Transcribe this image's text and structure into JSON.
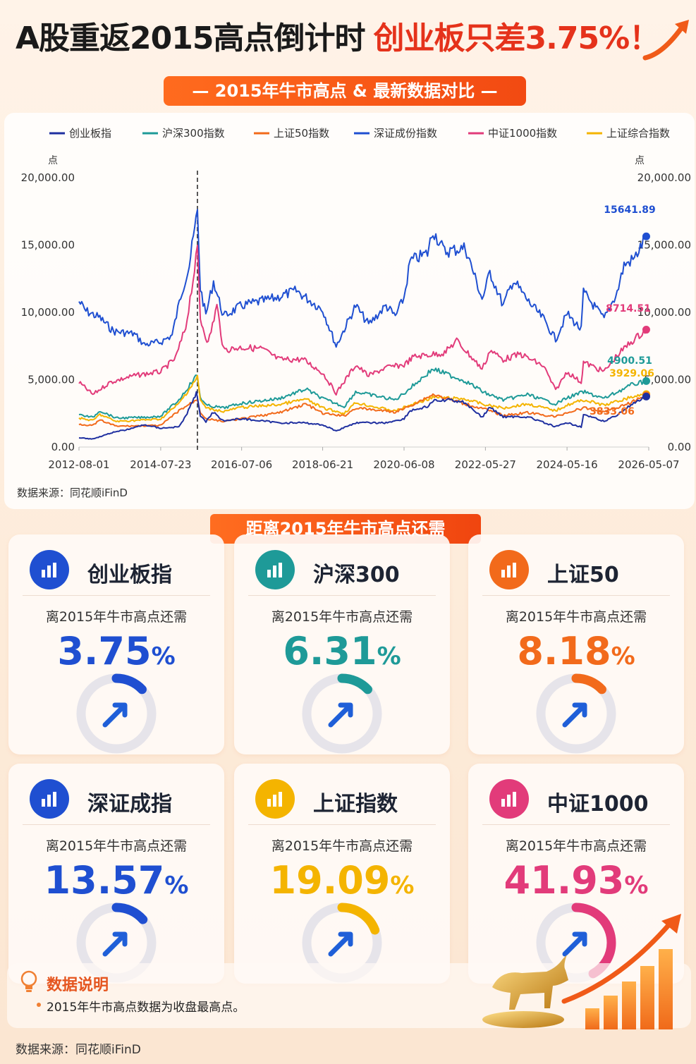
{
  "header": {
    "title_main": "A股重返2015高点倒计时",
    "title_accent": "创业板只差3.75%！",
    "banner": "— 2015年牛市高点 & 最新数据对比 —"
  },
  "colors": {
    "brand_orange": "#f24a12",
    "accent_red": "#e5321b",
    "chinext": "#1f4fd1",
    "hs300": "#1e9a98",
    "sz50": "#f26a1b",
    "szcomp": "#1f2fa0",
    "zz1000": "#e23b7a",
    "shcomp": "#f4b400"
  },
  "chart_data": {
    "type": "line",
    "legend": [
      "创业板指",
      "沪深300指数",
      "上证50指数",
      "深证成份指数",
      "中证1000指数",
      "上证综合指数"
    ],
    "ylabel_left": "点",
    "ylabel_right": "点",
    "ylim": [
      0,
      20000
    ],
    "y_ticks": [
      "0.00",
      "5,000.00",
      "10,000.00",
      "15,000.00",
      "20,000.00"
    ],
    "x_ticks": [
      "2012-08-01",
      "2014-07-23",
      "2016-07-06",
      "2018-06-21",
      "2020-06-08",
      "2022-05-27",
      "2024-05-16",
      "2026-05-07"
    ],
    "x_range": [
      "2012-08-01",
      "2026-05-07"
    ],
    "marker_date": "2015-06-12",
    "series": [
      {
        "name": "深证成份指数",
        "color": "#1f4fd1",
        "end_label": "15641.89",
        "points": [
          [
            "2012-08-01",
            10800
          ],
          [
            "2012-10-01",
            10100
          ],
          [
            "2013-02-01",
            9600
          ],
          [
            "2013-06-01",
            8600
          ],
          [
            "2013-12-01",
            8400
          ],
          [
            "2014-03-01",
            7600
          ],
          [
            "2014-07-23",
            7800
          ],
          [
            "2014-11-01",
            8300
          ],
          [
            "2015-01-15",
            11200
          ],
          [
            "2015-04-01",
            13500
          ],
          [
            "2015-06-12",
            17500
          ],
          [
            "2015-07-08",
            11800
          ],
          [
            "2015-08-25",
            9800
          ],
          [
            "2015-11-01",
            12300
          ],
          [
            "2016-01-28",
            9700
          ],
          [
            "2016-07-06",
            10500
          ],
          [
            "2017-04-01",
            11000
          ],
          [
            "2017-11-01",
            11600
          ],
          [
            "2018-06-21",
            10200
          ],
          [
            "2018-10-18",
            7500
          ],
          [
            "2019-04-08",
            10500
          ],
          [
            "2019-08-01",
            9100
          ],
          [
            "2020-01-01",
            10500
          ],
          [
            "2020-03-23",
            9700
          ],
          [
            "2020-06-08",
            11100
          ],
          [
            "2020-08-01",
            13800
          ],
          [
            "2021-01-01",
            14400
          ],
          [
            "2021-02-18",
            16100
          ],
          [
            "2021-06-01",
            14500
          ],
          [
            "2021-12-01",
            14800
          ],
          [
            "2022-04-27",
            11000
          ],
          [
            "2022-05-27",
            11700
          ],
          [
            "2022-07-05",
            13000
          ],
          [
            "2022-10-31",
            10500
          ],
          [
            "2023-01-28",
            12400
          ],
          [
            "2023-06-01",
            10900
          ],
          [
            "2023-10-23",
            9500
          ],
          [
            "2024-02-05",
            8000
          ],
          [
            "2024-05-16",
            9900
          ],
          [
            "2024-09-18",
            8700
          ],
          [
            "2024-10-08",
            11500
          ],
          [
            "2025-04-08",
            9500
          ],
          [
            "2025-08-01",
            11500
          ],
          [
            "2025-10-01",
            13500
          ],
          [
            "2026-01-01",
            14000
          ],
          [
            "2026-04-15",
            15641.89
          ]
        ]
      },
      {
        "name": "中证1000指数",
        "color": "#e23b7a",
        "end_label": "8714.51",
        "points": [
          [
            "2012-08-01",
            4800
          ],
          [
            "2012-12-01",
            3900
          ],
          [
            "2013-05-01",
            4800
          ],
          [
            "2013-12-01",
            5300
          ],
          [
            "2014-07-23",
            5600
          ],
          [
            "2014-12-01",
            6600
          ],
          [
            "2015-03-01",
            8900
          ],
          [
            "2015-06-12",
            14600
          ],
          [
            "2015-07-08",
            9500
          ],
          [
            "2015-09-15",
            7700
          ],
          [
            "2015-12-01",
            10500
          ],
          [
            "2016-01-28",
            7200
          ],
          [
            "2016-07-06",
            7400
          ],
          [
            "2017-01-01",
            7300
          ],
          [
            "2017-06-01",
            6500
          ],
          [
            "2018-01-01",
            6500
          ],
          [
            "2018-06-21",
            5500
          ],
          [
            "2018-10-18",
            4000
          ],
          [
            "2019-04-08",
            6100
          ],
          [
            "2019-08-01",
            5300
          ],
          [
            "2020-01-01",
            5900
          ],
          [
            "2020-06-08",
            6100
          ],
          [
            "2020-09-01",
            6700
          ],
          [
            "2021-06-01",
            7000
          ],
          [
            "2021-09-15",
            7900
          ],
          [
            "2022-04-27",
            5800
          ],
          [
            "2022-05-27",
            6300
          ],
          [
            "2022-07-05",
            7200
          ],
          [
            "2022-10-31",
            6500
          ],
          [
            "2023-04-01",
            6900
          ],
          [
            "2023-10-23",
            6000
          ],
          [
            "2024-02-05",
            4200
          ],
          [
            "2024-05-16",
            5600
          ],
          [
            "2024-09-18",
            4800
          ],
          [
            "2024-10-08",
            6300
          ],
          [
            "2025-04-08",
            5600
          ],
          [
            "2025-08-01",
            6800
          ],
          [
            "2025-12-01",
            7800
          ],
          [
            "2026-04-15",
            8714.51
          ]
        ]
      },
      {
        "name": "沪深300指数",
        "color": "#1e9a98",
        "end_label": "4900.51",
        "points": [
          [
            "2012-08-01",
            2400
          ],
          [
            "2012-12-01",
            2200
          ],
          [
            "2013-02-01",
            2700
          ],
          [
            "2013-06-25",
            2150
          ],
          [
            "2014-03-01",
            2200
          ],
          [
            "2014-07-23",
            2300
          ],
          [
            "2014-12-31",
            3500
          ],
          [
            "2015-06-08",
            5350
          ],
          [
            "2015-07-08",
            3700
          ],
          [
            "2015-08-26",
            3100
          ],
          [
            "2016-01-28",
            2900
          ],
          [
            "2016-07-06",
            3250
          ],
          [
            "2017-06-01",
            3600
          ],
          [
            "2018-01-24",
            4300
          ],
          [
            "2018-06-21",
            3600
          ],
          [
            "2018-12-28",
            3000
          ],
          [
            "2019-04-08",
            4100
          ],
          [
            "2020-03-23",
            3500
          ],
          [
            "2020-06-08",
            4000
          ],
          [
            "2021-02-18",
            5800
          ],
          [
            "2021-12-01",
            4900
          ],
          [
            "2022-05-27",
            4000
          ],
          [
            "2022-10-31",
            3500
          ],
          [
            "2023-06-01",
            3900
          ],
          [
            "2024-02-05",
            3200
          ],
          [
            "2024-05-16",
            3650
          ],
          [
            "2024-10-08",
            4100
          ],
          [
            "2025-04-08",
            3600
          ],
          [
            "2025-12-01",
            4600
          ],
          [
            "2026-04-15",
            4900.51
          ]
        ]
      },
      {
        "name": "上证综合指数",
        "color": "#f4b400",
        "end_label": "3929.06",
        "points": [
          [
            "2012-08-01",
            2150
          ],
          [
            "2012-12-01",
            1960
          ],
          [
            "2013-02-01",
            2420
          ],
          [
            "2013-06-25",
            1900
          ],
          [
            "2014-07-23",
            2080
          ],
          [
            "2014-12-31",
            3230
          ],
          [
            "2015-06-12",
            5180
          ],
          [
            "2015-07-08",
            3500
          ],
          [
            "2015-08-26",
            2900
          ],
          [
            "2016-01-28",
            2650
          ],
          [
            "2016-07-06",
            2950
          ],
          [
            "2017-06-01",
            3150
          ],
          [
            "2018-01-24",
            3560
          ],
          [
            "2018-06-21",
            2900
          ],
          [
            "2018-12-28",
            2500
          ],
          [
            "2019-04-08",
            3290
          ],
          [
            "2020-03-23",
            2660
          ],
          [
            "2020-06-08",
            2940
          ],
          [
            "2021-02-18",
            3700
          ],
          [
            "2021-12-01",
            3560
          ],
          [
            "2022-05-27",
            3130
          ],
          [
            "2022-10-31",
            2900
          ],
          [
            "2023-06-01",
            3200
          ],
          [
            "2024-02-05",
            2700
          ],
          [
            "2024-05-16",
            3120
          ],
          [
            "2024-10-08",
            3500
          ],
          [
            "2025-04-08",
            3100
          ],
          [
            "2025-12-01",
            3700
          ],
          [
            "2026-04-15",
            3929.06
          ]
        ]
      },
      {
        "name": "上证50指数",
        "color": "#f26a1b",
        "end_label": "3833.06",
        "points": [
          [
            "2012-08-01",
            1700
          ],
          [
            "2012-12-01",
            1600
          ],
          [
            "2013-02-01",
            2000
          ],
          [
            "2013-06-25",
            1550
          ],
          [
            "2014-07-23",
            1600
          ],
          [
            "2014-12-31",
            2700
          ],
          [
            "2015-06-12",
            3550
          ],
          [
            "2015-07-08",
            2600
          ],
          [
            "2015-08-26",
            2100
          ],
          [
            "2016-01-28",
            1900
          ],
          [
            "2016-07-06",
            2100
          ],
          [
            "2017-06-01",
            2550
          ],
          [
            "2018-01-24",
            3200
          ],
          [
            "2018-06-21",
            2500
          ],
          [
            "2018-12-28",
            2300
          ],
          [
            "2019-04-08",
            2900
          ],
          [
            "2020-03-23",
            2600
          ],
          [
            "2020-06-08",
            2850
          ],
          [
            "2021-02-18",
            3900
          ],
          [
            "2021-12-01",
            3200
          ],
          [
            "2022-05-27",
            2800
          ],
          [
            "2022-10-31",
            2350
          ],
          [
            "2023-06-01",
            2550
          ],
          [
            "2024-02-05",
            2250
          ],
          [
            "2024-05-16",
            2550
          ],
          [
            "2024-10-08",
            2900
          ],
          [
            "2025-04-08",
            2600
          ],
          [
            "2025-12-01",
            3300
          ],
          [
            "2026-04-15",
            3833.06
          ]
        ]
      },
      {
        "name": "创业板指",
        "color": "#1f2fa0",
        "end_label": "",
        "points": [
          [
            "2012-08-01",
            700
          ],
          [
            "2012-12-01",
            600
          ],
          [
            "2013-06-01",
            1100
          ],
          [
            "2013-10-01",
            1300
          ],
          [
            "2014-03-01",
            1650
          ],
          [
            "2014-07-23",
            1400
          ],
          [
            "2014-12-31",
            1500
          ],
          [
            "2015-03-01",
            2300
          ],
          [
            "2015-06-03",
            4000
          ],
          [
            "2015-07-08",
            2350
          ],
          [
            "2015-08-26",
            1900
          ],
          [
            "2015-11-01",
            2600
          ],
          [
            "2016-01-28",
            1950
          ],
          [
            "2016-07-06",
            2100
          ],
          [
            "2017-06-01",
            1800
          ],
          [
            "2018-01-01",
            1800
          ],
          [
            "2018-06-21",
            1650
          ],
          [
            "2018-10-18",
            1200
          ],
          [
            "2019-04-08",
            1800
          ],
          [
            "2020-01-01",
            1800
          ],
          [
            "2020-06-08",
            2100
          ],
          [
            "2020-08-01",
            2700
          ],
          [
            "2021-01-01",
            3000
          ],
          [
            "2021-02-18",
            3400
          ],
          [
            "2021-07-21",
            3500
          ],
          [
            "2021-12-01",
            3300
          ],
          [
            "2022-04-27",
            2200
          ],
          [
            "2022-07-05",
            2950
          ],
          [
            "2022-10-31",
            2250
          ],
          [
            "2023-06-01",
            2250
          ],
          [
            "2024-02-05",
            1500
          ],
          [
            "2024-05-16",
            1800
          ],
          [
            "2024-09-18",
            1500
          ],
          [
            "2024-10-08",
            2400
          ],
          [
            "2025-04-08",
            1900
          ],
          [
            "2025-08-01",
            2400
          ],
          [
            "2025-12-01",
            3100
          ],
          [
            "2026-04-15",
            3750
          ]
        ]
      }
    ],
    "source": "数据来源：同花顺iFinD"
  },
  "section_label": "距离2015年牛市高点还需",
  "cards": [
    {
      "name": "创业板指",
      "sub": "离2015年牛市高点还需",
      "value": "3.75",
      "unit": "%",
      "color": "#1f4fd1",
      "fraction": 0.0375
    },
    {
      "name": "沪深300",
      "sub": "离2015年牛市高点还需",
      "value": "6.31",
      "unit": "%",
      "color": "#1e9a98",
      "fraction": 0.0631
    },
    {
      "name": "上证50",
      "sub": "离2015年牛市高点还需",
      "value": "8.18",
      "unit": "%",
      "color": "#f26a1b",
      "fraction": 0.0818
    },
    {
      "name": "深证成指",
      "sub": "离2015年牛市高点还需",
      "value": "13.57",
      "unit": "%",
      "color": "#1f4fd1",
      "fraction": 0.1357
    },
    {
      "name": "上证指数",
      "sub": "离2015年牛市高点还需",
      "value": "19.09",
      "unit": "%",
      "color": "#f4b400",
      "fraction": 0.1909
    },
    {
      "name": "中证1000",
      "sub": "离2015年牛市高点还需",
      "value": "41.93",
      "unit": "%",
      "color": "#e23b7a",
      "fraction": 0.4193
    }
  ],
  "notes": {
    "title": "数据说明",
    "text": "2015年牛市高点数据为收盘最高点。"
  },
  "footer": {
    "source": "数据来源：同花顺iFinD"
  }
}
